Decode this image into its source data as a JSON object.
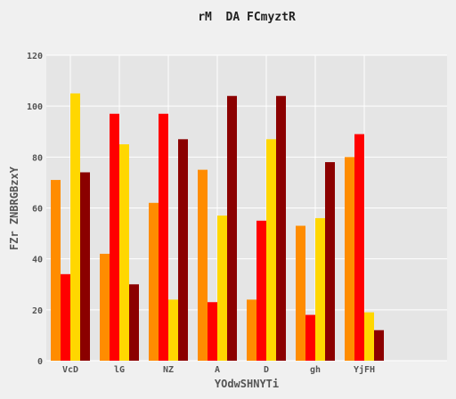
{
  "chart_data": {
    "type": "bar",
    "title": "rM  DA FCmyztR",
    "xlabel": "YOdwSHNYTi",
    "ylabel": "FZr ZNBRGBzxY",
    "ylim": [
      0,
      120
    ],
    "yticks": [
      0,
      20,
      40,
      60,
      80,
      100,
      120
    ],
    "grid": true,
    "categories": [
      "VcD",
      "lG",
      "NZ",
      "A",
      "D",
      "gh",
      "YjFH"
    ],
    "series": [
      {
        "color": "#ff8c00",
        "values": [
          71,
          42,
          62,
          75,
          24,
          53,
          80
        ]
      },
      {
        "color": "#ff0000",
        "values": [
          34,
          97,
          97,
          23,
          55,
          18,
          89
        ]
      },
      {
        "color": "#ffd700",
        "values": [
          105,
          85,
          24,
          57,
          87,
          56,
          19
        ]
      },
      {
        "color": "#8b0000",
        "values": [
          74,
          30,
          87,
          104,
          104,
          78,
          12
        ]
      }
    ],
    "colors": {
      "plot_background": "#e5e5e5",
      "grid": "#ffffff",
      "page_background": "#f0f0f0"
    }
  }
}
